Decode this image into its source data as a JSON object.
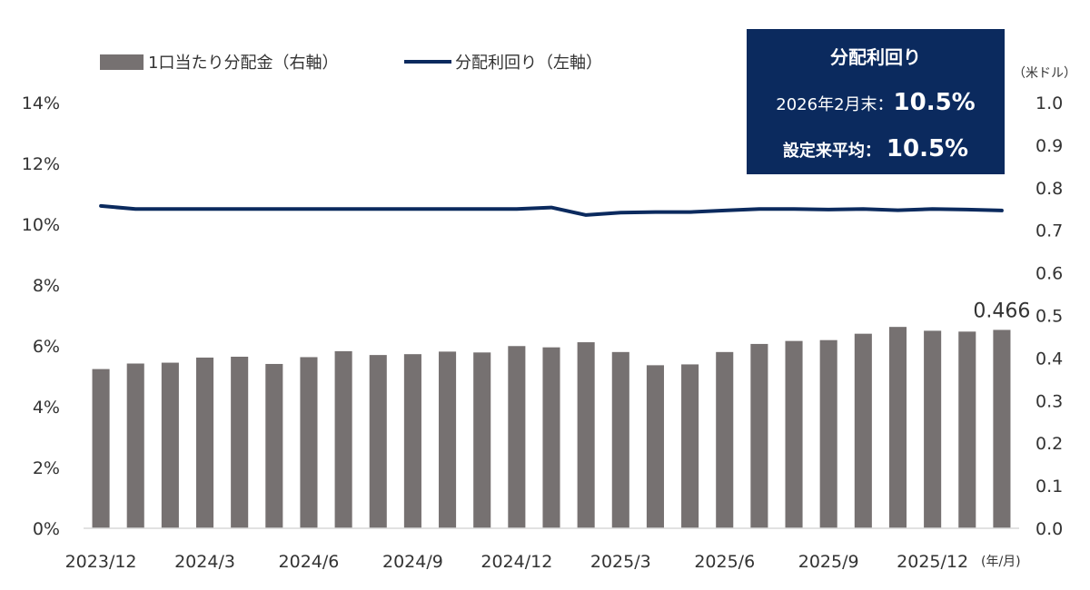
{
  "chart_data": {
    "type": "bar+line",
    "categories": [
      "2023/12",
      "2024/1",
      "2024/2",
      "2024/3",
      "2024/4",
      "2024/5",
      "2024/6",
      "2024/7",
      "2024/8",
      "2024/9",
      "2024/10",
      "2024/11",
      "2024/12",
      "2025/1",
      "2025/2",
      "2025/3",
      "2025/4",
      "2025/5",
      "2025/6",
      "2025/7",
      "2025/8",
      "2025/9",
      "2025/10",
      "2025/11",
      "2025/12",
      "2026/1",
      "2026/2"
    ],
    "x_tick_labels": [
      "2023/12",
      "2024/3",
      "2024/6",
      "2024/9",
      "2024/12",
      "2025/3",
      "2025/6",
      "2025/9",
      "2025/12"
    ],
    "x_unit": "(年/月)",
    "series": [
      {
        "name": "1口当たり分配金（右軸）",
        "type": "bar",
        "axis": "right",
        "color": "#767171",
        "values": [
          0.374,
          0.387,
          0.389,
          0.401,
          0.403,
          0.386,
          0.402,
          0.416,
          0.407,
          0.409,
          0.415,
          0.413,
          0.428,
          0.425,
          0.437,
          0.414,
          0.383,
          0.385,
          0.414,
          0.433,
          0.44,
          0.442,
          0.457,
          0.473,
          0.464,
          0.462,
          0.466
        ]
      },
      {
        "name": "分配利回り（左軸）",
        "type": "line",
        "axis": "left",
        "color": "#0b2a5e",
        "values": [
          10.6,
          10.5,
          10.5,
          10.5,
          10.5,
          10.5,
          10.5,
          10.5,
          10.5,
          10.5,
          10.5,
          10.5,
          10.5,
          10.55,
          10.3,
          10.38,
          10.4,
          10.4,
          10.45,
          10.5,
          10.5,
          10.48,
          10.5,
          10.46,
          10.5,
          10.48,
          10.45
        ]
      }
    ],
    "left_axis": {
      "ylim": [
        0,
        14
      ],
      "ticks": [
        "0%",
        "2%",
        "4%",
        "6%",
        "8%",
        "10%",
        "12%",
        "14%"
      ],
      "tick_values": [
        0,
        2,
        4,
        6,
        8,
        10,
        12,
        14
      ]
    },
    "right_axis": {
      "ylim": [
        0,
        1.0
      ],
      "ticks": [
        "0.0",
        "0.1",
        "0.2",
        "0.3",
        "0.4",
        "0.5",
        "0.6",
        "0.7",
        "0.8",
        "0.9",
        "1.0"
      ],
      "tick_values": [
        0,
        0.1,
        0.2,
        0.3,
        0.4,
        0.5,
        0.6,
        0.7,
        0.8,
        0.9,
        1.0
      ],
      "unit": "（米ドル）"
    },
    "annotation": {
      "category_index": 26,
      "text": "0.466"
    },
    "legend": {
      "position": "top-left"
    },
    "grid": false
  },
  "summary_box": {
    "title": "分配利回り",
    "line1_label": "2026年2月末：",
    "line1_value": "10.5%",
    "line2_label": "設定来平均：",
    "line2_value": "10.5%",
    "background": "#0b2a5e"
  }
}
